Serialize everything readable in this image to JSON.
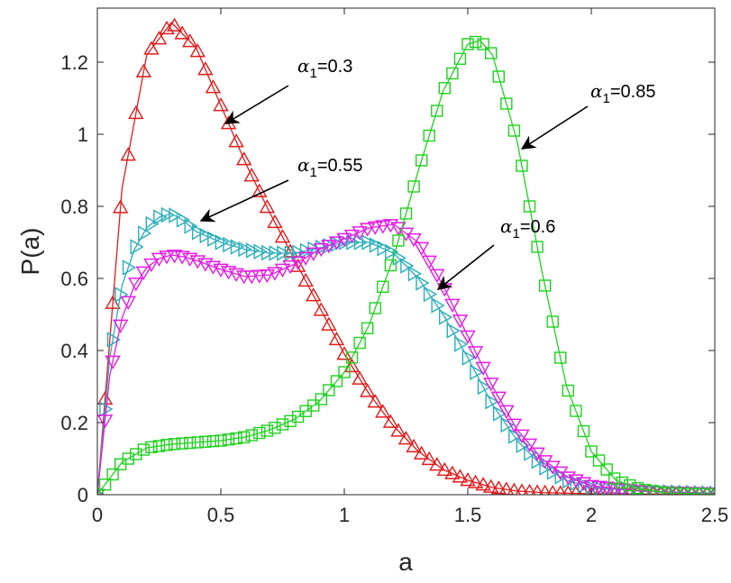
{
  "chart_data": {
    "type": "line",
    "xlabel": "a",
    "ylabel": "P(a)",
    "xlim": [
      0,
      2.5
    ],
    "ylim": [
      0,
      1.35
    ],
    "x_ticks": [
      {
        "value": 0,
        "label": "0"
      },
      {
        "value": 0.5,
        "label": "0.5"
      },
      {
        "value": 1,
        "label": "1"
      },
      {
        "value": 1.5,
        "label": "1.5"
      },
      {
        "value": 2,
        "label": "2"
      },
      {
        "value": 2.5,
        "label": "2.5"
      }
    ],
    "y_ticks": [
      {
        "value": 0,
        "label": "0"
      },
      {
        "value": 0.2,
        "label": "0.2"
      },
      {
        "value": 0.4,
        "label": "0.4"
      },
      {
        "value": 0.6,
        "label": "0.6"
      },
      {
        "value": 0.8,
        "label": "0.8"
      },
      {
        "value": 1,
        "label": "1"
      },
      {
        "value": 1.2,
        "label": "1.2"
      }
    ],
    "grid": false,
    "legend": "none",
    "series": [
      {
        "alpha_value": "0.3",
        "color": "#e31a1a",
        "marker": "triangle-up",
        "x": [
          0,
          0.1,
          0.2,
          0.3,
          0.4,
          0.5,
          0.6,
          0.7,
          0.8,
          0.9,
          1.0,
          1.1,
          1.2,
          1.3,
          1.4,
          1.5,
          1.6,
          1.7,
          1.8,
          1.9,
          2.0,
          2.2,
          2.5
        ],
        "y": [
          0,
          0.85,
          1.22,
          1.31,
          1.24,
          1.08,
          0.92,
          0.78,
          0.65,
          0.52,
          0.39,
          0.28,
          0.19,
          0.12,
          0.07,
          0.04,
          0.02,
          0.01,
          0.006,
          0.004,
          0.003,
          0.002,
          0.001
        ]
      },
      {
        "alpha_value": "0.55",
        "color": "#2aaebb",
        "marker": "triangle-right",
        "x": [
          0,
          0.05,
          0.1,
          0.15,
          0.2,
          0.25,
          0.3,
          0.35,
          0.4,
          0.5,
          0.6,
          0.7,
          0.8,
          0.9,
          1.0,
          1.1,
          1.2,
          1.3,
          1.4,
          1.5,
          1.6,
          1.7,
          1.8,
          1.9,
          2.0,
          2.2,
          2.5
        ],
        "y": [
          0,
          0.38,
          0.58,
          0.68,
          0.74,
          0.77,
          0.78,
          0.76,
          0.73,
          0.7,
          0.68,
          0.67,
          0.67,
          0.685,
          0.7,
          0.7,
          0.67,
          0.6,
          0.5,
          0.38,
          0.25,
          0.15,
          0.08,
          0.04,
          0.02,
          0.01,
          0.004
        ]
      },
      {
        "alpha_value": "0.6",
        "color": "#e41ae4",
        "marker": "triangle-down",
        "x": [
          0,
          0.05,
          0.1,
          0.15,
          0.2,
          0.25,
          0.3,
          0.35,
          0.4,
          0.5,
          0.6,
          0.7,
          0.8,
          0.9,
          1.0,
          1.1,
          1.2,
          1.3,
          1.4,
          1.5,
          1.6,
          1.7,
          1.8,
          1.9,
          2.0,
          2.2,
          2.5
        ],
        "y": [
          0,
          0.33,
          0.49,
          0.58,
          0.63,
          0.655,
          0.665,
          0.66,
          0.65,
          0.625,
          0.605,
          0.61,
          0.64,
          0.68,
          0.71,
          0.74,
          0.75,
          0.7,
          0.58,
          0.44,
          0.3,
          0.18,
          0.1,
          0.05,
          0.025,
          0.01,
          0.003
        ]
      },
      {
        "alpha_value": "0.85",
        "color": "#1fd11f",
        "marker": "square",
        "x": [
          0,
          0.1,
          0.2,
          0.3,
          0.4,
          0.5,
          0.6,
          0.7,
          0.8,
          0.9,
          1.0,
          1.1,
          1.2,
          1.3,
          1.4,
          1.5,
          1.55,
          1.6,
          1.7,
          1.8,
          1.9,
          2.0,
          2.1,
          2.2,
          2.3,
          2.5
        ],
        "y": [
          0,
          0.09,
          0.13,
          0.14,
          0.145,
          0.15,
          0.16,
          0.18,
          0.21,
          0.26,
          0.34,
          0.47,
          0.66,
          0.9,
          1.12,
          1.25,
          1.26,
          1.22,
          0.98,
          0.62,
          0.3,
          0.12,
          0.04,
          0.015,
          0.005,
          0.001
        ]
      }
    ],
    "annotations": [
      {
        "series": 0,
        "alpha_symbol": "α",
        "alpha_sub": "1",
        "label": "=0.3",
        "points_to": [
          0.52,
          1.03
        ]
      },
      {
        "series": 1,
        "alpha_symbol": "α",
        "alpha_sub": "1",
        "label": "=0.55",
        "points_to": [
          0.42,
          0.76
        ]
      },
      {
        "series": 2,
        "alpha_symbol": "α",
        "alpha_sub": "1",
        "label": "=0.6",
        "points_to": [
          1.38,
          0.57
        ]
      },
      {
        "series": 3,
        "alpha_symbol": "α",
        "alpha_sub": "1",
        "label": "=0.85",
        "points_to": [
          1.72,
          0.96
        ]
      }
    ]
  }
}
